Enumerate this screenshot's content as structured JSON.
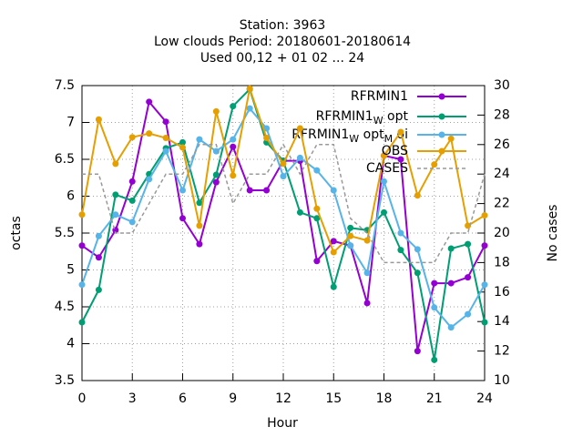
{
  "chart_data": {
    "type": "line",
    "title": [
      "Station:      3963",
      "Low clouds   Period: 20180601-20180614",
      "Used  00,12  + 01 02 ... 24"
    ],
    "xlabel": "Hour",
    "ylabel": "octas",
    "y2label": "No cases",
    "x": [
      0,
      1,
      2,
      3,
      4,
      5,
      6,
      7,
      8,
      9,
      10,
      11,
      12,
      13,
      14,
      15,
      16,
      17,
      18,
      19,
      20,
      21,
      22,
      23,
      24
    ],
    "xlim": [
      0,
      24
    ],
    "xticks": [
      0,
      3,
      6,
      9,
      12,
      15,
      18,
      21,
      24
    ],
    "ylim": [
      3.5,
      7.5
    ],
    "yticks": [
      3.5,
      4,
      4.5,
      5,
      5.5,
      6,
      6.5,
      7,
      7.5
    ],
    "y2lim": [
      10,
      30
    ],
    "y2ticks": [
      10,
      12,
      14,
      16,
      18,
      20,
      22,
      24,
      26,
      28,
      30
    ],
    "grid": true,
    "legend": "top-right",
    "series": [
      {
        "name": "RFRMIN1",
        "color": "#9400d3",
        "values": [
          5.33,
          5.17,
          5.54,
          6.2,
          7.28,
          7.01,
          5.7,
          5.35,
          6.19,
          6.67,
          6.08,
          6.08,
          6.48,
          6.48,
          5.12,
          5.39,
          5.33,
          4.55,
          6.55,
          6.5,
          3.9,
          4.82,
          4.82,
          4.9,
          5.33
        ]
      },
      {
        "name": "RFRMIN1_W opt",
        "color": "#009e73",
        "values": [
          4.29,
          4.73,
          6.02,
          5.94,
          6.3,
          6.65,
          6.73,
          5.91,
          6.29,
          7.22,
          7.45,
          6.73,
          6.48,
          5.78,
          5.7,
          4.77,
          5.57,
          5.54,
          5.78,
          5.27,
          4.96,
          3.78,
          5.29,
          5.35,
          4.29
        ]
      },
      {
        "name": "RFRMIN1_W opt_M oi",
        "color": "#56b4e9",
        "values": [
          4.8,
          5.46,
          5.75,
          5.65,
          6.23,
          6.61,
          6.08,
          6.77,
          6.61,
          6.77,
          7.19,
          6.92,
          6.27,
          6.52,
          6.35,
          6.08,
          5.33,
          4.96,
          6.2,
          5.5,
          5.28,
          4.49,
          4.22,
          4.4,
          4.8
        ]
      },
      {
        "name": "OBS",
        "color": "#e69f00",
        "values": [
          5.75,
          7.04,
          6.44,
          6.8,
          6.85,
          6.79,
          6.66,
          5.6,
          7.15,
          6.28,
          7.46,
          6.79,
          6.44,
          6.92,
          5.83,
          5.24,
          5.46,
          5.4,
          6.55,
          6.87,
          6.01,
          6.43,
          6.78,
          5.6,
          5.74
        ]
      },
      {
        "name": "CASES",
        "color": "#999999",
        "axis": "y2",
        "values": [
          24,
          24,
          20,
          20,
          22,
          24,
          24,
          26,
          26,
          22,
          24,
          24,
          26,
          24,
          26,
          26,
          21,
          20,
          18,
          18,
          18,
          18,
          20,
          20,
          24
        ]
      }
    ]
  }
}
